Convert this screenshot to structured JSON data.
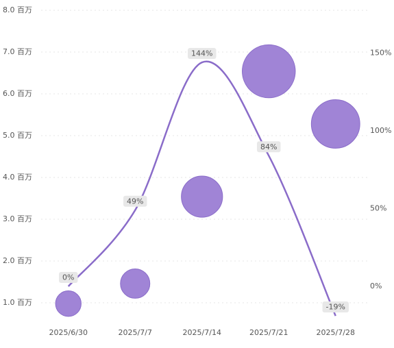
{
  "chart_data": {
    "type": "bubble",
    "categories": [
      "2025/6/30",
      "2025/7/7",
      "2025/7/14",
      "2025/7/21",
      "2025/7/28"
    ],
    "series": [
      {
        "type": "bubble",
        "color": "#a084d6",
        "values": [
          0.98,
          1.46,
          3.54,
          6.54,
          5.28
        ],
        "sizes": [
          0.98,
          1.46,
          3.54,
          6.54,
          5.28
        ]
      },
      {
        "type": "line",
        "axis": "y2",
        "color": "#8a6cc9",
        "values": [
          0,
          49,
          144,
          84,
          -19
        ],
        "value_labels": [
          "0%",
          "49%",
          "144%",
          "84%",
          "-19%"
        ]
      }
    ],
    "ylim": [
      0.5,
      8.0
    ],
    "yticks": [
      {
        "value": 1,
        "label": "1.0 百万"
      },
      {
        "value": 2,
        "label": "2.0 百万"
      },
      {
        "value": 3,
        "label": "3.0 百万"
      },
      {
        "value": 4,
        "label": "4.0 百万"
      },
      {
        "value": 5,
        "label": "5.0 百万"
      },
      {
        "value": 6,
        "label": "6.0 百万"
      },
      {
        "value": 7,
        "label": "7.0 百万"
      },
      {
        "value": 8,
        "label": "8.0 百万"
      }
    ],
    "y2lim": [
      -24,
      177.5
    ],
    "y2ticks": [
      {
        "value": 0,
        "label": "0%"
      },
      {
        "value": 50,
        "label": "50%"
      },
      {
        "value": 100,
        "label": "100%"
      },
      {
        "value": 150,
        "label": "150%"
      }
    ],
    "grid": true
  }
}
